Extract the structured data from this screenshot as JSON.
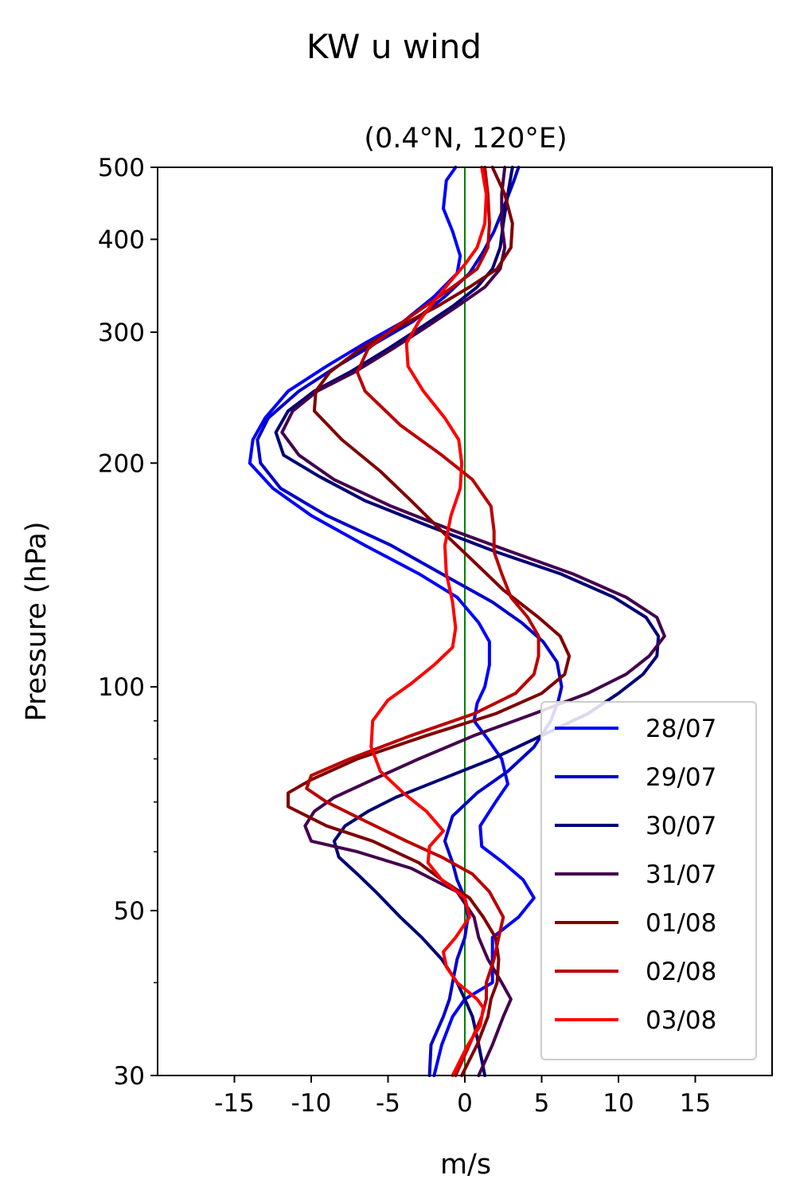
{
  "figure": {
    "suptitle": "KW u wind"
  },
  "chart_data": {
    "type": "line",
    "title": "(0.4°N, 120°E)",
    "xlabel": "m/s",
    "ylabel": "Pressure (hPa)",
    "xlim": [
      -20,
      20
    ],
    "ylim": [
      500,
      30
    ],
    "yscale": "log",
    "xticks": [
      -15,
      -10,
      -5,
      0,
      5,
      10,
      15
    ],
    "xtick_labels": [
      "-15",
      "-10",
      "-5",
      "0",
      "5",
      "10",
      "15"
    ],
    "yticks": [
      30,
      50,
      100,
      200,
      300,
      400,
      500
    ],
    "ytick_labels": [
      "30",
      "50",
      "100",
      "200",
      "300",
      "400",
      "500"
    ],
    "yminor_ticks": [
      40,
      60,
      70,
      80,
      90
    ],
    "grid": false,
    "legend_position": "lower-right",
    "zero_line": {
      "x": 0,
      "color": "#008000"
    },
    "series": [
      {
        "name": "28/07",
        "color": "#0000ff",
        "points": [
          [
            -2,
            30
          ],
          [
            -1.5,
            33
          ],
          [
            -0.8,
            36
          ],
          [
            0,
            38
          ],
          [
            1.8,
            40
          ],
          [
            1.8,
            43
          ],
          [
            1.8,
            46
          ],
          [
            3.5,
            49
          ],
          [
            4.5,
            52
          ],
          [
            3.8,
            55
          ],
          [
            2.5,
            58
          ],
          [
            1.1,
            61
          ],
          [
            1,
            65
          ],
          [
            2,
            70
          ],
          [
            2.8,
            74
          ],
          [
            2.4,
            80
          ],
          [
            1.5,
            85
          ],
          [
            0.6,
            90
          ],
          [
            0.8,
            95
          ],
          [
            1.3,
            100
          ],
          [
            1.6,
            107
          ],
          [
            1.6,
            115
          ],
          [
            0.9,
            122
          ],
          [
            -0.5,
            132
          ],
          [
            -3,
            142
          ],
          [
            -6.5,
            155
          ],
          [
            -10,
            170
          ],
          [
            -12.5,
            185
          ],
          [
            -14,
            200
          ],
          [
            -13.8,
            215
          ],
          [
            -13,
            230
          ],
          [
            -11.5,
            250
          ],
          [
            -9,
            270
          ],
          [
            -6.5,
            290
          ],
          [
            -4,
            310
          ],
          [
            -2,
            335
          ],
          [
            -0.5,
            360
          ],
          [
            -0.3,
            380
          ],
          [
            -0.8,
            410
          ],
          [
            -1.4,
            440
          ],
          [
            -1.2,
            480
          ],
          [
            -0.6,
            500
          ]
        ]
      },
      {
        "name": "29/07",
        "color": "#0000cc",
        "points": [
          [
            -2.3,
            30
          ],
          [
            -2.2,
            33
          ],
          [
            -1.4,
            36
          ],
          [
            -1,
            38
          ],
          [
            -0.8,
            40
          ],
          [
            -0.5,
            43
          ],
          [
            0,
            46
          ],
          [
            0.2,
            49
          ],
          [
            0,
            52
          ],
          [
            -0.5,
            55
          ],
          [
            -0.8,
            58
          ],
          [
            -1.3,
            62
          ],
          [
            -0.8,
            67
          ],
          [
            0.8,
            72
          ],
          [
            2.8,
            77
          ],
          [
            4.5,
            83
          ],
          [
            5.6,
            90
          ],
          [
            6.1,
            96
          ],
          [
            6.3,
            100
          ],
          [
            6,
            108
          ],
          [
            5.1,
            115
          ],
          [
            3.7,
            122
          ],
          [
            1.8,
            130
          ],
          [
            -1,
            140
          ],
          [
            -4.8,
            155
          ],
          [
            -9,
            170
          ],
          [
            -12,
            185
          ],
          [
            -13.3,
            200
          ],
          [
            -13.5,
            215
          ],
          [
            -12.8,
            230
          ],
          [
            -10.8,
            250
          ],
          [
            -8.3,
            270
          ],
          [
            -5.8,
            290
          ],
          [
            -3.4,
            310
          ],
          [
            -1.3,
            335
          ],
          [
            0.3,
            360
          ],
          [
            1.2,
            385
          ],
          [
            1.9,
            410
          ],
          [
            2.5,
            440
          ],
          [
            3.2,
            480
          ],
          [
            3.5,
            500
          ]
        ]
      },
      {
        "name": "30/07",
        "color": "#000077",
        "points": [
          [
            1.3,
            30
          ],
          [
            0.9,
            33
          ],
          [
            0.5,
            36
          ],
          [
            0,
            38
          ],
          [
            -0.5,
            40
          ],
          [
            -1.5,
            43
          ],
          [
            -2.8,
            46
          ],
          [
            -4.2,
            49
          ],
          [
            -5.8,
            53
          ],
          [
            -7,
            56
          ],
          [
            -8.2,
            59
          ],
          [
            -8.5,
            62
          ],
          [
            -7.8,
            65
          ],
          [
            -6.3,
            68
          ],
          [
            -4.5,
            71
          ],
          [
            -1.6,
            75
          ],
          [
            1.8,
            80
          ],
          [
            5,
            86
          ],
          [
            8,
            92
          ],
          [
            10,
            98
          ],
          [
            11.6,
            104
          ],
          [
            12.5,
            110
          ],
          [
            12.6,
            117
          ],
          [
            11.8,
            124
          ],
          [
            9.7,
            132
          ],
          [
            6.2,
            142
          ],
          [
            2,
            152
          ],
          [
            -2.5,
            165
          ],
          [
            -6.5,
            178
          ],
          [
            -9.5,
            192
          ],
          [
            -11.8,
            205
          ],
          [
            -12.3,
            220
          ],
          [
            -11.5,
            235
          ],
          [
            -9.8,
            250
          ],
          [
            -7.5,
            265
          ],
          [
            -5,
            285
          ],
          [
            -2.8,
            305
          ],
          [
            -0.8,
            325
          ],
          [
            0.8,
            345
          ],
          [
            1.8,
            365
          ],
          [
            2.3,
            390
          ],
          [
            2.5,
            420
          ],
          [
            2.8,
            460
          ],
          [
            3.1,
            500
          ]
        ]
      },
      {
        "name": "31/07",
        "color": "#44004d",
        "points": [
          [
            0.9,
            30
          ],
          [
            1.8,
            33
          ],
          [
            2.5,
            36
          ],
          [
            3,
            38
          ],
          [
            2.4,
            40
          ],
          [
            1.5,
            43
          ],
          [
            0.9,
            46
          ],
          [
            0.6,
            49
          ],
          [
            -0.5,
            53
          ],
          [
            -3.5,
            57
          ],
          [
            -7,
            60
          ],
          [
            -10,
            62
          ],
          [
            -10.4,
            65
          ],
          [
            -9.8,
            68
          ],
          [
            -8.5,
            71
          ],
          [
            -6,
            75
          ],
          [
            -3,
            80
          ],
          [
            0.6,
            86
          ],
          [
            4.5,
            92
          ],
          [
            8,
            98
          ],
          [
            10.5,
            104
          ],
          [
            12,
            110
          ],
          [
            13,
            117
          ],
          [
            12.5,
            124
          ],
          [
            10.5,
            132
          ],
          [
            7,
            142
          ],
          [
            3,
            152
          ],
          [
            -1,
            163
          ],
          [
            -4.8,
            175
          ],
          [
            -8.5,
            190
          ],
          [
            -10.8,
            205
          ],
          [
            -11.9,
            220
          ],
          [
            -11.2,
            235
          ],
          [
            -9.6,
            250
          ],
          [
            -7.2,
            265
          ],
          [
            -4.7,
            285
          ],
          [
            -2.5,
            305
          ],
          [
            -0.5,
            325
          ],
          [
            1.3,
            345
          ],
          [
            2.3,
            365
          ],
          [
            2.6,
            390
          ],
          [
            2.4,
            420
          ],
          [
            2.4,
            460
          ],
          [
            2.6,
            500
          ]
        ]
      },
      {
        "name": "01/08",
        "color": "#800000",
        "points": [
          [
            -0.2,
            30
          ],
          [
            0.8,
            33
          ],
          [
            1.5,
            36
          ],
          [
            1.7,
            38
          ],
          [
            2.1,
            40
          ],
          [
            2.2,
            43
          ],
          [
            2,
            46
          ],
          [
            1.2,
            49
          ],
          [
            0.3,
            52
          ],
          [
            -1.5,
            55
          ],
          [
            -3,
            58
          ],
          [
            -6,
            62
          ],
          [
            -9,
            65
          ],
          [
            -11.5,
            69
          ],
          [
            -11.5,
            72
          ],
          [
            -10,
            75
          ],
          [
            -7,
            80
          ],
          [
            -2.5,
            86
          ],
          [
            2,
            92
          ],
          [
            5,
            98
          ],
          [
            6.5,
            104
          ],
          [
            6.8,
            110
          ],
          [
            6.2,
            117
          ],
          [
            4.8,
            124
          ],
          [
            2.5,
            135
          ],
          [
            0.5,
            148
          ],
          [
            -1.5,
            162
          ],
          [
            -3.5,
            178
          ],
          [
            -5.5,
            195
          ],
          [
            -8,
            215
          ],
          [
            -9.8,
            235
          ],
          [
            -9.7,
            250
          ],
          [
            -8.8,
            265
          ],
          [
            -6.8,
            285
          ],
          [
            -4.3,
            305
          ],
          [
            -1.8,
            325
          ],
          [
            0.3,
            345
          ],
          [
            2.1,
            365
          ],
          [
            3,
            390
          ],
          [
            3.1,
            420
          ],
          [
            2.6,
            460
          ],
          [
            1.8,
            500
          ]
        ]
      },
      {
        "name": "02/08",
        "color": "#bb0000",
        "points": [
          [
            -0.6,
            30
          ],
          [
            0.3,
            33
          ],
          [
            1.1,
            36
          ],
          [
            1.4,
            38
          ],
          [
            1.4,
            40
          ],
          [
            1.9,
            43
          ],
          [
            2.2,
            46
          ],
          [
            2.5,
            49
          ],
          [
            1.6,
            53
          ],
          [
            0.5,
            56
          ],
          [
            -1.5,
            59
          ],
          [
            -3.8,
            62
          ],
          [
            -6.5,
            66
          ],
          [
            -9,
            70
          ],
          [
            -10.3,
            73
          ],
          [
            -10,
            76
          ],
          [
            -7.5,
            80
          ],
          [
            -3.5,
            86
          ],
          [
            0.6,
            92
          ],
          [
            3.3,
            98
          ],
          [
            4.5,
            104
          ],
          [
            4.8,
            110
          ],
          [
            4.8,
            117
          ],
          [
            4.1,
            124
          ],
          [
            3,
            132
          ],
          [
            2.4,
            142
          ],
          [
            1.9,
            152
          ],
          [
            1.9,
            162
          ],
          [
            1.7,
            175
          ],
          [
            0.5,
            190
          ],
          [
            -1.5,
            205
          ],
          [
            -4.2,
            225
          ],
          [
            -6.5,
            250
          ],
          [
            -7,
            265
          ],
          [
            -6.3,
            285
          ],
          [
            -4.5,
            305
          ],
          [
            -2.6,
            325
          ],
          [
            -0.8,
            345
          ],
          [
            0.8,
            365
          ],
          [
            1.5,
            390
          ],
          [
            1.6,
            420
          ],
          [
            1.5,
            460
          ],
          [
            1.3,
            500
          ]
        ]
      },
      {
        "name": "03/08",
        "color": "#ff0000",
        "points": [
          [
            -0.8,
            30
          ],
          [
            0.2,
            33
          ],
          [
            1,
            35
          ],
          [
            1.2,
            37
          ],
          [
            0.8,
            38
          ],
          [
            -0.5,
            40
          ],
          [
            -1.2,
            42
          ],
          [
            -1.4,
            44
          ],
          [
            -0.6,
            46
          ],
          [
            0.3,
            49
          ],
          [
            0,
            52
          ],
          [
            -1.5,
            55
          ],
          [
            -2.4,
            58
          ],
          [
            -2.3,
            61
          ],
          [
            -1.4,
            64
          ],
          [
            -2.5,
            68
          ],
          [
            -4,
            72
          ],
          [
            -5.5,
            77
          ],
          [
            -6.1,
            83
          ],
          [
            -6,
            90
          ],
          [
            -5,
            96
          ],
          [
            -3.5,
            101
          ],
          [
            -2,
            107
          ],
          [
            -0.8,
            113
          ],
          [
            -0.6,
            120
          ],
          [
            -0.8,
            130
          ],
          [
            -1.2,
            142
          ],
          [
            -1.3,
            155
          ],
          [
            -0.9,
            170
          ],
          [
            -0.3,
            185
          ],
          [
            -0.2,
            200
          ],
          [
            -0.4,
            215
          ],
          [
            -1.3,
            230
          ],
          [
            -2.7,
            250
          ],
          [
            -3.7,
            270
          ],
          [
            -3.8,
            290
          ],
          [
            -3,
            310
          ],
          [
            -2,
            330
          ],
          [
            -1,
            350
          ],
          [
            0,
            370
          ],
          [
            0.8,
            390
          ],
          [
            1.3,
            420
          ],
          [
            1.4,
            460
          ],
          [
            1.1,
            500
          ]
        ]
      }
    ]
  }
}
